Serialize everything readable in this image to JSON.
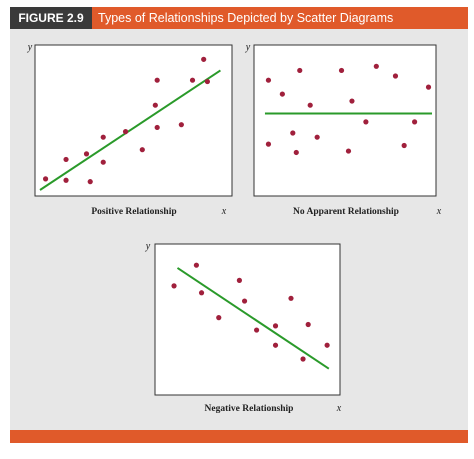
{
  "figure": {
    "label": "FIGURE 2.9",
    "title": "Types of Relationships Depicted by Scatter Diagrams",
    "accent_color": "#e05a2a",
    "label_bg_color": "#3a3a3a",
    "panel_bg_color": "#e7e7e7"
  },
  "chart_data": [
    {
      "type": "scatter",
      "title": "Positive Relationship",
      "xlabel": "x",
      "ylabel": "y",
      "xlim": [
        0,
        10
      ],
      "ylim": [
        0,
        10
      ],
      "point_color": "#a0203c",
      "line_color": "#2a9a2a",
      "points": [
        [
          0.3,
          0.8
        ],
        [
          1.4,
          0.7
        ],
        [
          2.7,
          0.6
        ],
        [
          1.4,
          2.2
        ],
        [
          2.5,
          2.6
        ],
        [
          3.4,
          2.0
        ],
        [
          3.4,
          3.8
        ],
        [
          4.6,
          4.2
        ],
        [
          5.5,
          2.9
        ],
        [
          6.3,
          4.5
        ],
        [
          6.2,
          6.1
        ],
        [
          7.6,
          4.7
        ],
        [
          6.3,
          7.9
        ],
        [
          8.2,
          7.9
        ],
        [
          9.0,
          7.8
        ],
        [
          8.8,
          9.4
        ]
      ],
      "trend_line": [
        [
          0,
          0.0
        ],
        [
          9.7,
          8.6
        ]
      ]
    },
    {
      "type": "scatter",
      "title": "No Apparent Relationship",
      "xlabel": "x",
      "ylabel": "y",
      "xlim": [
        0,
        10
      ],
      "ylim": [
        0,
        10
      ],
      "point_color": "#a0203c",
      "line_color": "#2a9a2a",
      "points": [
        [
          0.6,
          7.9
        ],
        [
          1.4,
          6.9
        ],
        [
          2.4,
          8.6
        ],
        [
          3.0,
          6.1
        ],
        [
          4.8,
          8.6
        ],
        [
          5.4,
          6.4
        ],
        [
          6.8,
          8.9
        ],
        [
          7.9,
          8.2
        ],
        [
          9.8,
          7.4
        ],
        [
          0.6,
          3.3
        ],
        [
          2.0,
          4.1
        ],
        [
          2.2,
          2.7
        ],
        [
          3.4,
          3.8
        ],
        [
          5.2,
          2.8
        ],
        [
          6.2,
          4.9
        ],
        [
          8.4,
          3.2
        ],
        [
          9.0,
          4.9
        ]
      ],
      "trend_line": [
        [
          0.4,
          5.5
        ],
        [
          10.0,
          5.5
        ]
      ]
    },
    {
      "type": "scatter",
      "title": "Negative Relationship",
      "xlabel": "x",
      "ylabel": "y",
      "xlim": [
        0,
        10
      ],
      "ylim": [
        0,
        10
      ],
      "point_color": "#a0203c",
      "line_color": "#2a9a2a",
      "points": [
        [
          0.7,
          7.4
        ],
        [
          2.0,
          8.9
        ],
        [
          2.3,
          6.9
        ],
        [
          3.3,
          5.1
        ],
        [
          4.5,
          7.8
        ],
        [
          4.8,
          6.3
        ],
        [
          5.5,
          4.2
        ],
        [
          6.6,
          4.5
        ],
        [
          6.6,
          3.1
        ],
        [
          7.5,
          6.5
        ],
        [
          8.5,
          4.6
        ],
        [
          8.2,
          2.1
        ],
        [
          9.6,
          3.1
        ]
      ],
      "trend_line": [
        [
          0.9,
          8.7
        ],
        [
          9.7,
          1.4
        ]
      ]
    }
  ]
}
